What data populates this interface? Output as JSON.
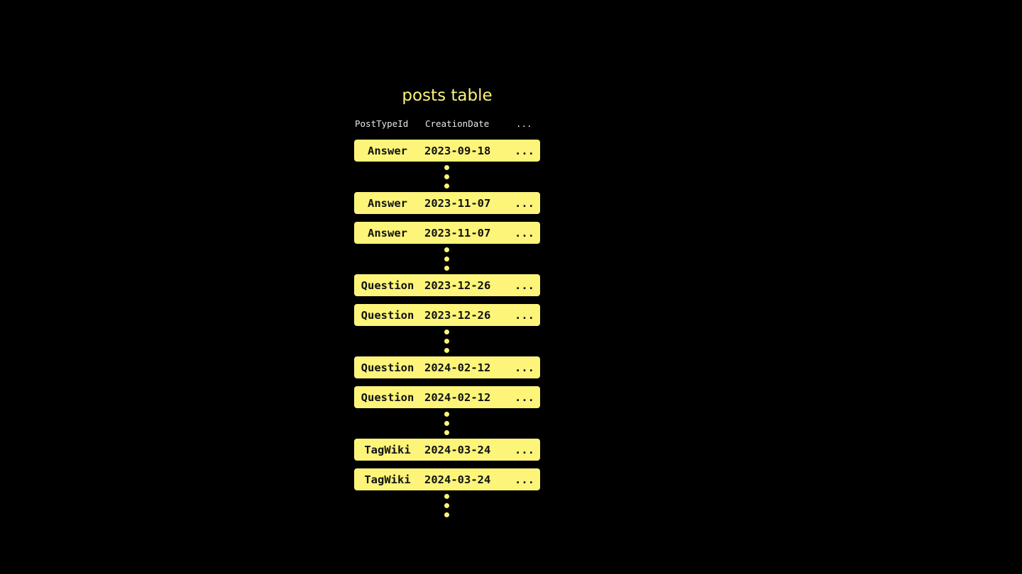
{
  "title": "posts table",
  "columns": [
    "PostTypeId",
    "CreationDate",
    "..."
  ],
  "rows": [
    {
      "type": "Answer",
      "date": "2023-09-18",
      "more": "..."
    },
    {
      "type": "Answer",
      "date": "2023-11-07",
      "more": "..."
    },
    {
      "type": "Answer",
      "date": "2023-11-07",
      "more": "..."
    },
    {
      "type": "Question",
      "date": "2023-12-26",
      "more": "..."
    },
    {
      "type": "Question",
      "date": "2023-12-26",
      "more": "..."
    },
    {
      "type": "Question",
      "date": "2024-02-12",
      "more": "..."
    },
    {
      "type": "Question",
      "date": "2024-02-12",
      "more": "..."
    },
    {
      "type": "TagWiki",
      "date": "2024-03-24",
      "more": "..."
    },
    {
      "type": "TagWiki",
      "date": "2024-03-24",
      "more": "..."
    }
  ],
  "colors": {
    "accent": "#fdf57a",
    "background": "#000000"
  }
}
